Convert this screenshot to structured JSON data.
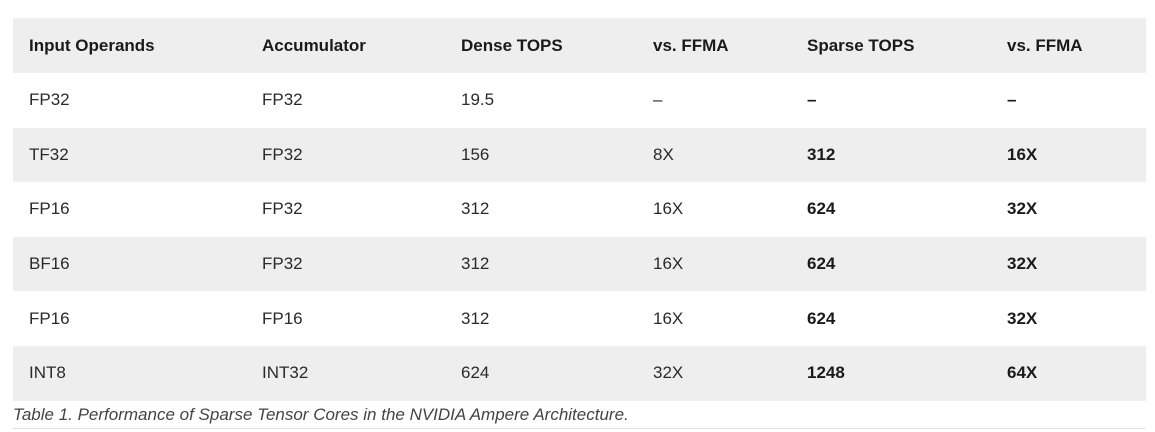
{
  "table": {
    "headers": [
      "Input Operands",
      "Accumulator",
      "Dense TOPS",
      "vs. FFMA",
      "Sparse TOPS",
      "vs. FFMA"
    ],
    "rows": [
      [
        "FP32",
        "FP32",
        "19.5",
        "–",
        "–",
        "–"
      ],
      [
        "TF32",
        "FP32",
        "156",
        "8X",
        "312",
        "16X"
      ],
      [
        "FP16",
        "FP32",
        "312",
        "16X",
        "624",
        "32X"
      ],
      [
        "BF16",
        "FP32",
        "312",
        "16X",
        "624",
        "32X"
      ],
      [
        "FP16",
        "FP16",
        "312",
        "16X",
        "624",
        "32X"
      ],
      [
        "INT8",
        "INT32",
        "624",
        "32X",
        "1248",
        "64X"
      ]
    ]
  },
  "caption": "Table 1. Performance of Sparse Tensor Cores in the NVIDIA Ampere Architecture.",
  "colors": {
    "stripe": "#eeeeee",
    "text": "#1a1a1a",
    "caption": "#444444"
  }
}
